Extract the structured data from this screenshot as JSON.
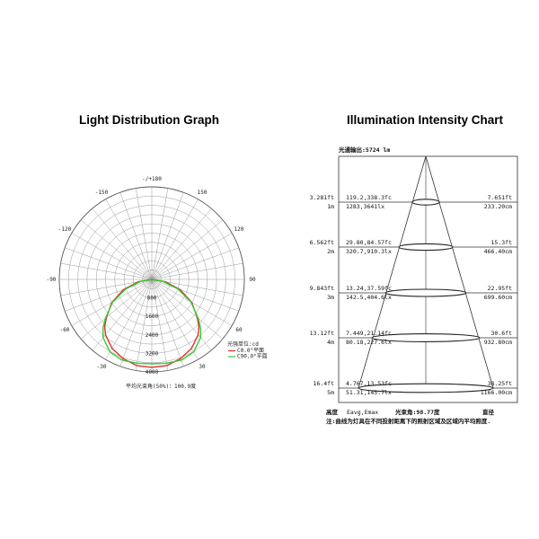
{
  "left_title": "Light Distribution Graph",
  "right_title": "Illumination Intensity Chart",
  "chart_data": [
    {
      "type": "polar",
      "title": "Light Distribution Graph",
      "angle_labels": [
        {
          "angle": 0,
          "text": "-/+180"
        },
        {
          "angle": 30,
          "text": "150"
        },
        {
          "angle": -30,
          "text": "-150"
        },
        {
          "angle": 60,
          "text": "120"
        },
        {
          "angle": -60,
          "text": "-120"
        },
        {
          "angle": 90,
          "text": "90"
        },
        {
          "angle": -90,
          "text": "-90"
        },
        {
          "angle": 120,
          "text": "60"
        },
        {
          "angle": -120,
          "text": "-60"
        },
        {
          "angle": 150,
          "text": "30"
        },
        {
          "angle": -150,
          "text": "-30"
        }
      ],
      "radial_labels": [
        "800",
        "1600",
        "2400",
        "3200",
        "4000"
      ],
      "rmax": 4000,
      "legend_title": "光强单位:cd",
      "series": [
        {
          "name": "C0.0°平面",
          "color": "#e03030",
          "theta": [
            0,
            10,
            20,
            30,
            40,
            45,
            50,
            60,
            70,
            80,
            90
          ],
          "r": [
            3800,
            3780,
            3640,
            3440,
            3120,
            2880,
            2560,
            2000,
            1300,
            600,
            0
          ]
        },
        {
          "name": "C90.0°平面",
          "color": "#33cc33",
          "theta": [
            0,
            10,
            20,
            30,
            40,
            45,
            50,
            60,
            70,
            80,
            90
          ],
          "r": [
            3650,
            3680,
            3720,
            3620,
            3280,
            2980,
            2620,
            1950,
            1200,
            480,
            0
          ]
        }
      ],
      "footer": "平均光束角(50%)：100.9度"
    },
    {
      "type": "table",
      "title": "Illumination Intensity Chart",
      "header": "光通输出:5724 lm",
      "rows": [
        {
          "ft": "3.281ft",
          "m": "1m",
          "lux_fc": "119.2,338.3fc",
          "lux_lx": "1283,3641lx",
          "dia_ft": "7.651ft",
          "dia_cm": "233.20cm"
        },
        {
          "ft": "6.562ft",
          "m": "2m",
          "lux_fc": "29.80,84.57fc",
          "lux_lx": "320.7,910.3lx",
          "dia_ft": "15.3ft",
          "dia_cm": "466.40cm"
        },
        {
          "ft": "9.843ft",
          "m": "3m",
          "lux_fc": "13.24,37.59fc",
          "lux_lx": "142.5,404.6lx",
          "dia_ft": "22.95ft",
          "dia_cm": "699.60cm"
        },
        {
          "ft": "13.12ft",
          "m": "4m",
          "lux_fc": "7.449,21.14fc",
          "lux_lx": "80.18,227.6lx",
          "dia_ft": "30.6ft",
          "dia_cm": "932.80cm"
        },
        {
          "ft": "16.4ft",
          "m": "5m",
          "lux_fc": "4.767,13.53fc",
          "lux_lx": "51.31,145.7lx",
          "dia_ft": "38.25ft",
          "dia_cm": "1166.00cm"
        }
      ],
      "col_height": "高度",
      "col_e": "Eavg,Emax",
      "col_beam": "光束角:98.77度",
      "col_dia": "直径",
      "note": "注:曲线为灯具在不同投射距离下的照射区域及区域内平均照度."
    }
  ]
}
